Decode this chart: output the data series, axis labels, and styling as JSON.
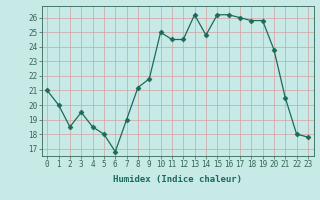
{
  "x": [
    0,
    1,
    2,
    3,
    4,
    5,
    6,
    7,
    8,
    9,
    10,
    11,
    12,
    13,
    14,
    15,
    16,
    17,
    18,
    19,
    20,
    21,
    22,
    23
  ],
  "y": [
    21,
    20,
    18.5,
    19.5,
    18.5,
    18,
    16.8,
    19,
    21.2,
    21.8,
    25,
    24.5,
    24.5,
    26.2,
    24.8,
    26.2,
    26.2,
    26,
    25.8,
    25.8,
    23.8,
    20.5,
    18,
    17.8
  ],
  "xlabel": "Humidex (Indice chaleur)",
  "xlim": [
    -0.5,
    23.5
  ],
  "ylim": [
    16.5,
    26.8
  ],
  "yticks": [
    17,
    18,
    19,
    20,
    21,
    22,
    23,
    24,
    25,
    26
  ],
  "xticks": [
    0,
    1,
    2,
    3,
    4,
    5,
    6,
    7,
    8,
    9,
    10,
    11,
    12,
    13,
    14,
    15,
    16,
    17,
    18,
    19,
    20,
    21,
    22,
    23
  ],
  "line_color": "#1a6b5a",
  "marker": "D",
  "marker_size": 2.5,
  "bg_color": "#c8eae6",
  "grid_color_major": "#d4a0a0",
  "grid_color_minor": "#d4a0a0",
  "axis_color": "#336655",
  "label_fontsize": 6.5,
  "tick_fontsize": 5.5
}
